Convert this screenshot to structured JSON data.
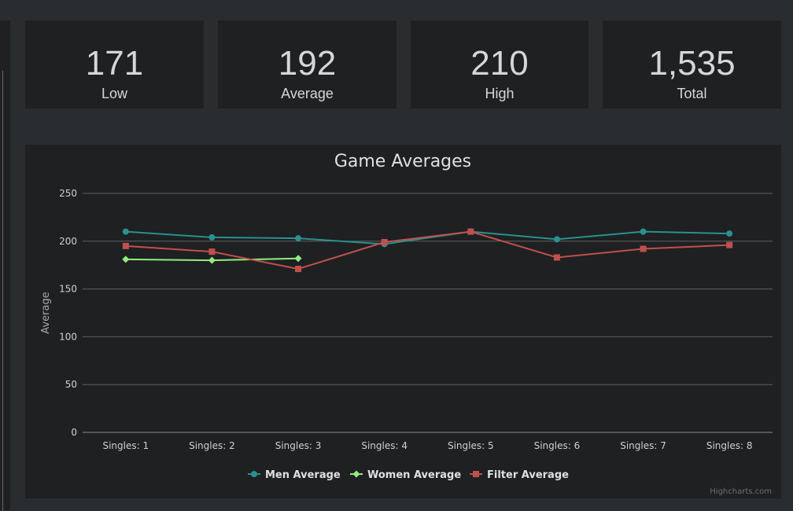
{
  "stats": [
    {
      "value": "171",
      "label": "Low"
    },
    {
      "value": "192",
      "label": "Average"
    },
    {
      "value": "210",
      "label": "High"
    },
    {
      "value": "1,535",
      "label": "Total"
    }
  ],
  "colors": {
    "background": "#2a2d30",
    "card": "#1f2022",
    "men": "#2b908f",
    "women": "#90ee7e",
    "filter": "#c0504d"
  },
  "chart_data": {
    "type": "line",
    "title": "Game Averages",
    "xlabel": "",
    "ylabel": "Average",
    "ylim": [
      0,
      250
    ],
    "yticks": [
      0,
      50,
      100,
      150,
      200,
      250
    ],
    "grid": true,
    "legend_position": "bottom",
    "credits": "Highcharts.com",
    "categories": [
      "Singles: 1",
      "Singles: 2",
      "Singles: 3",
      "Singles: 4",
      "Singles: 5",
      "Singles: 6",
      "Singles: 7",
      "Singles: 8"
    ],
    "series": [
      {
        "name": "Men Average",
        "color": "#2b908f",
        "marker": "circle",
        "values": [
          210,
          204,
          203,
          197,
          210,
          202,
          210,
          208
        ]
      },
      {
        "name": "Women Average",
        "color": "#90ee7e",
        "marker": "diamond",
        "values": [
          181,
          180,
          182,
          null,
          null,
          null,
          null,
          null
        ]
      },
      {
        "name": "Filter Average",
        "color": "#c0504d",
        "marker": "square",
        "values": [
          195,
          189,
          171,
          199,
          210,
          183,
          192,
          196
        ]
      }
    ]
  }
}
